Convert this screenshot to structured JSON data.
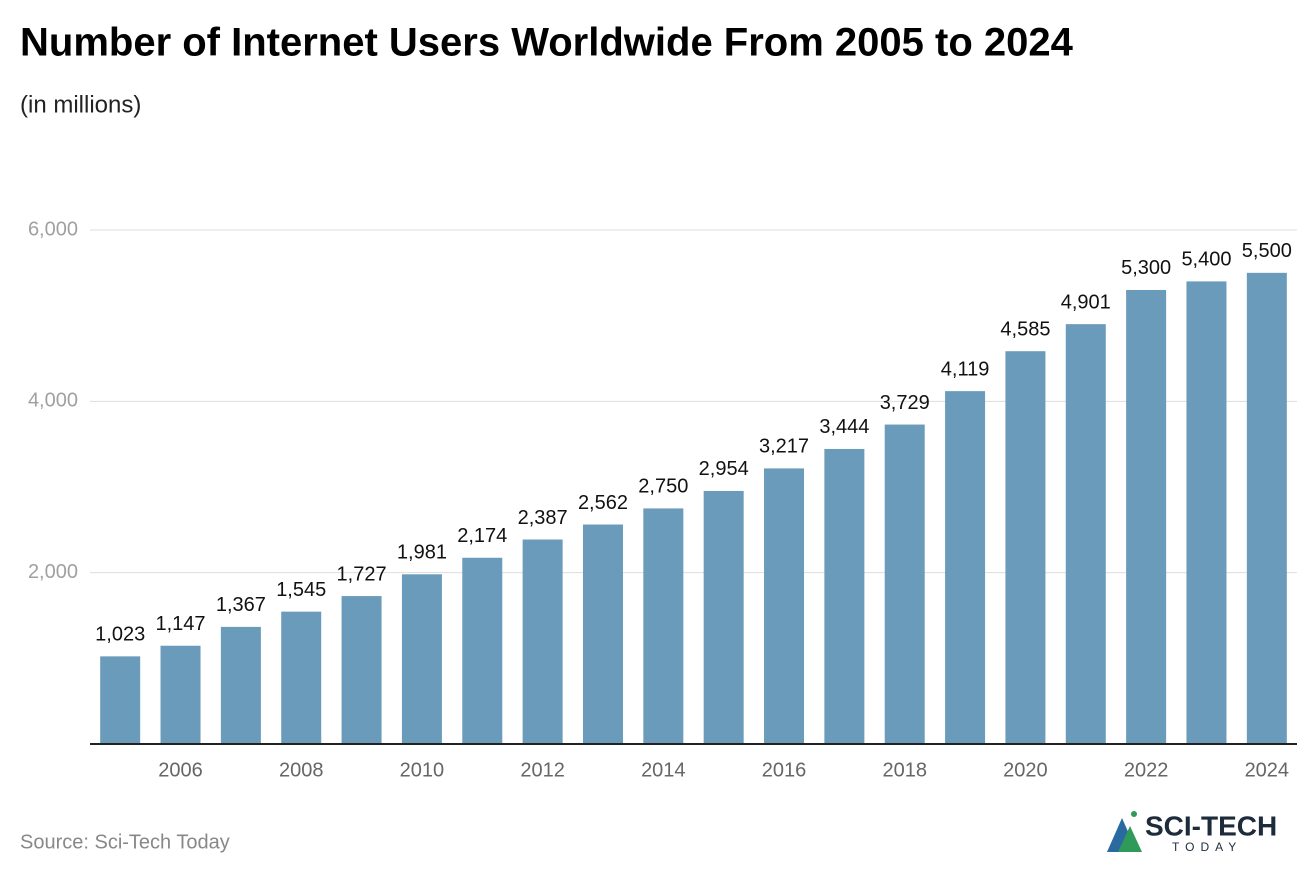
{
  "chart_data": {
    "type": "bar",
    "title": "Number of Internet Users Worldwide From 2005 to 2024",
    "subtitle": "(in millions)",
    "source": "Source: Sci-Tech Today",
    "logo_text": "SCI-TECH",
    "logo_subtext": "TODAY",
    "categories": [
      null,
      "2006",
      null,
      "2008",
      null,
      "2010",
      null,
      "2012",
      null,
      "2014",
      null,
      "2016",
      null,
      "2018",
      null,
      "2020",
      null,
      "2022",
      null,
      "2024"
    ],
    "values": [
      1023,
      1147,
      1367,
      1545,
      1727,
      1981,
      2174,
      2387,
      2562,
      2750,
      2954,
      3217,
      3444,
      3729,
      4119,
      4585,
      4901,
      5300,
      5400,
      5500
    ],
    "value_labels": [
      "1,023",
      "1,147",
      "1,367",
      "1,545",
      "1,727",
      "1,981",
      "2,174",
      "2,387",
      "2,562",
      "2,750",
      "2,954",
      "3,217",
      "3,444",
      "3,729",
      "4,119",
      "4,585",
      "4,901",
      "5,300",
      "5,400",
      "5,500"
    ],
    "color": "#6a9bba",
    "ylim": [
      0,
      6000
    ],
    "yticks": [
      {
        "value": 2000,
        "label": "2,000"
      },
      {
        "value": 4000,
        "label": "4,000"
      },
      {
        "value": 6000,
        "label": "6,000"
      }
    ],
    "grid": true
  }
}
